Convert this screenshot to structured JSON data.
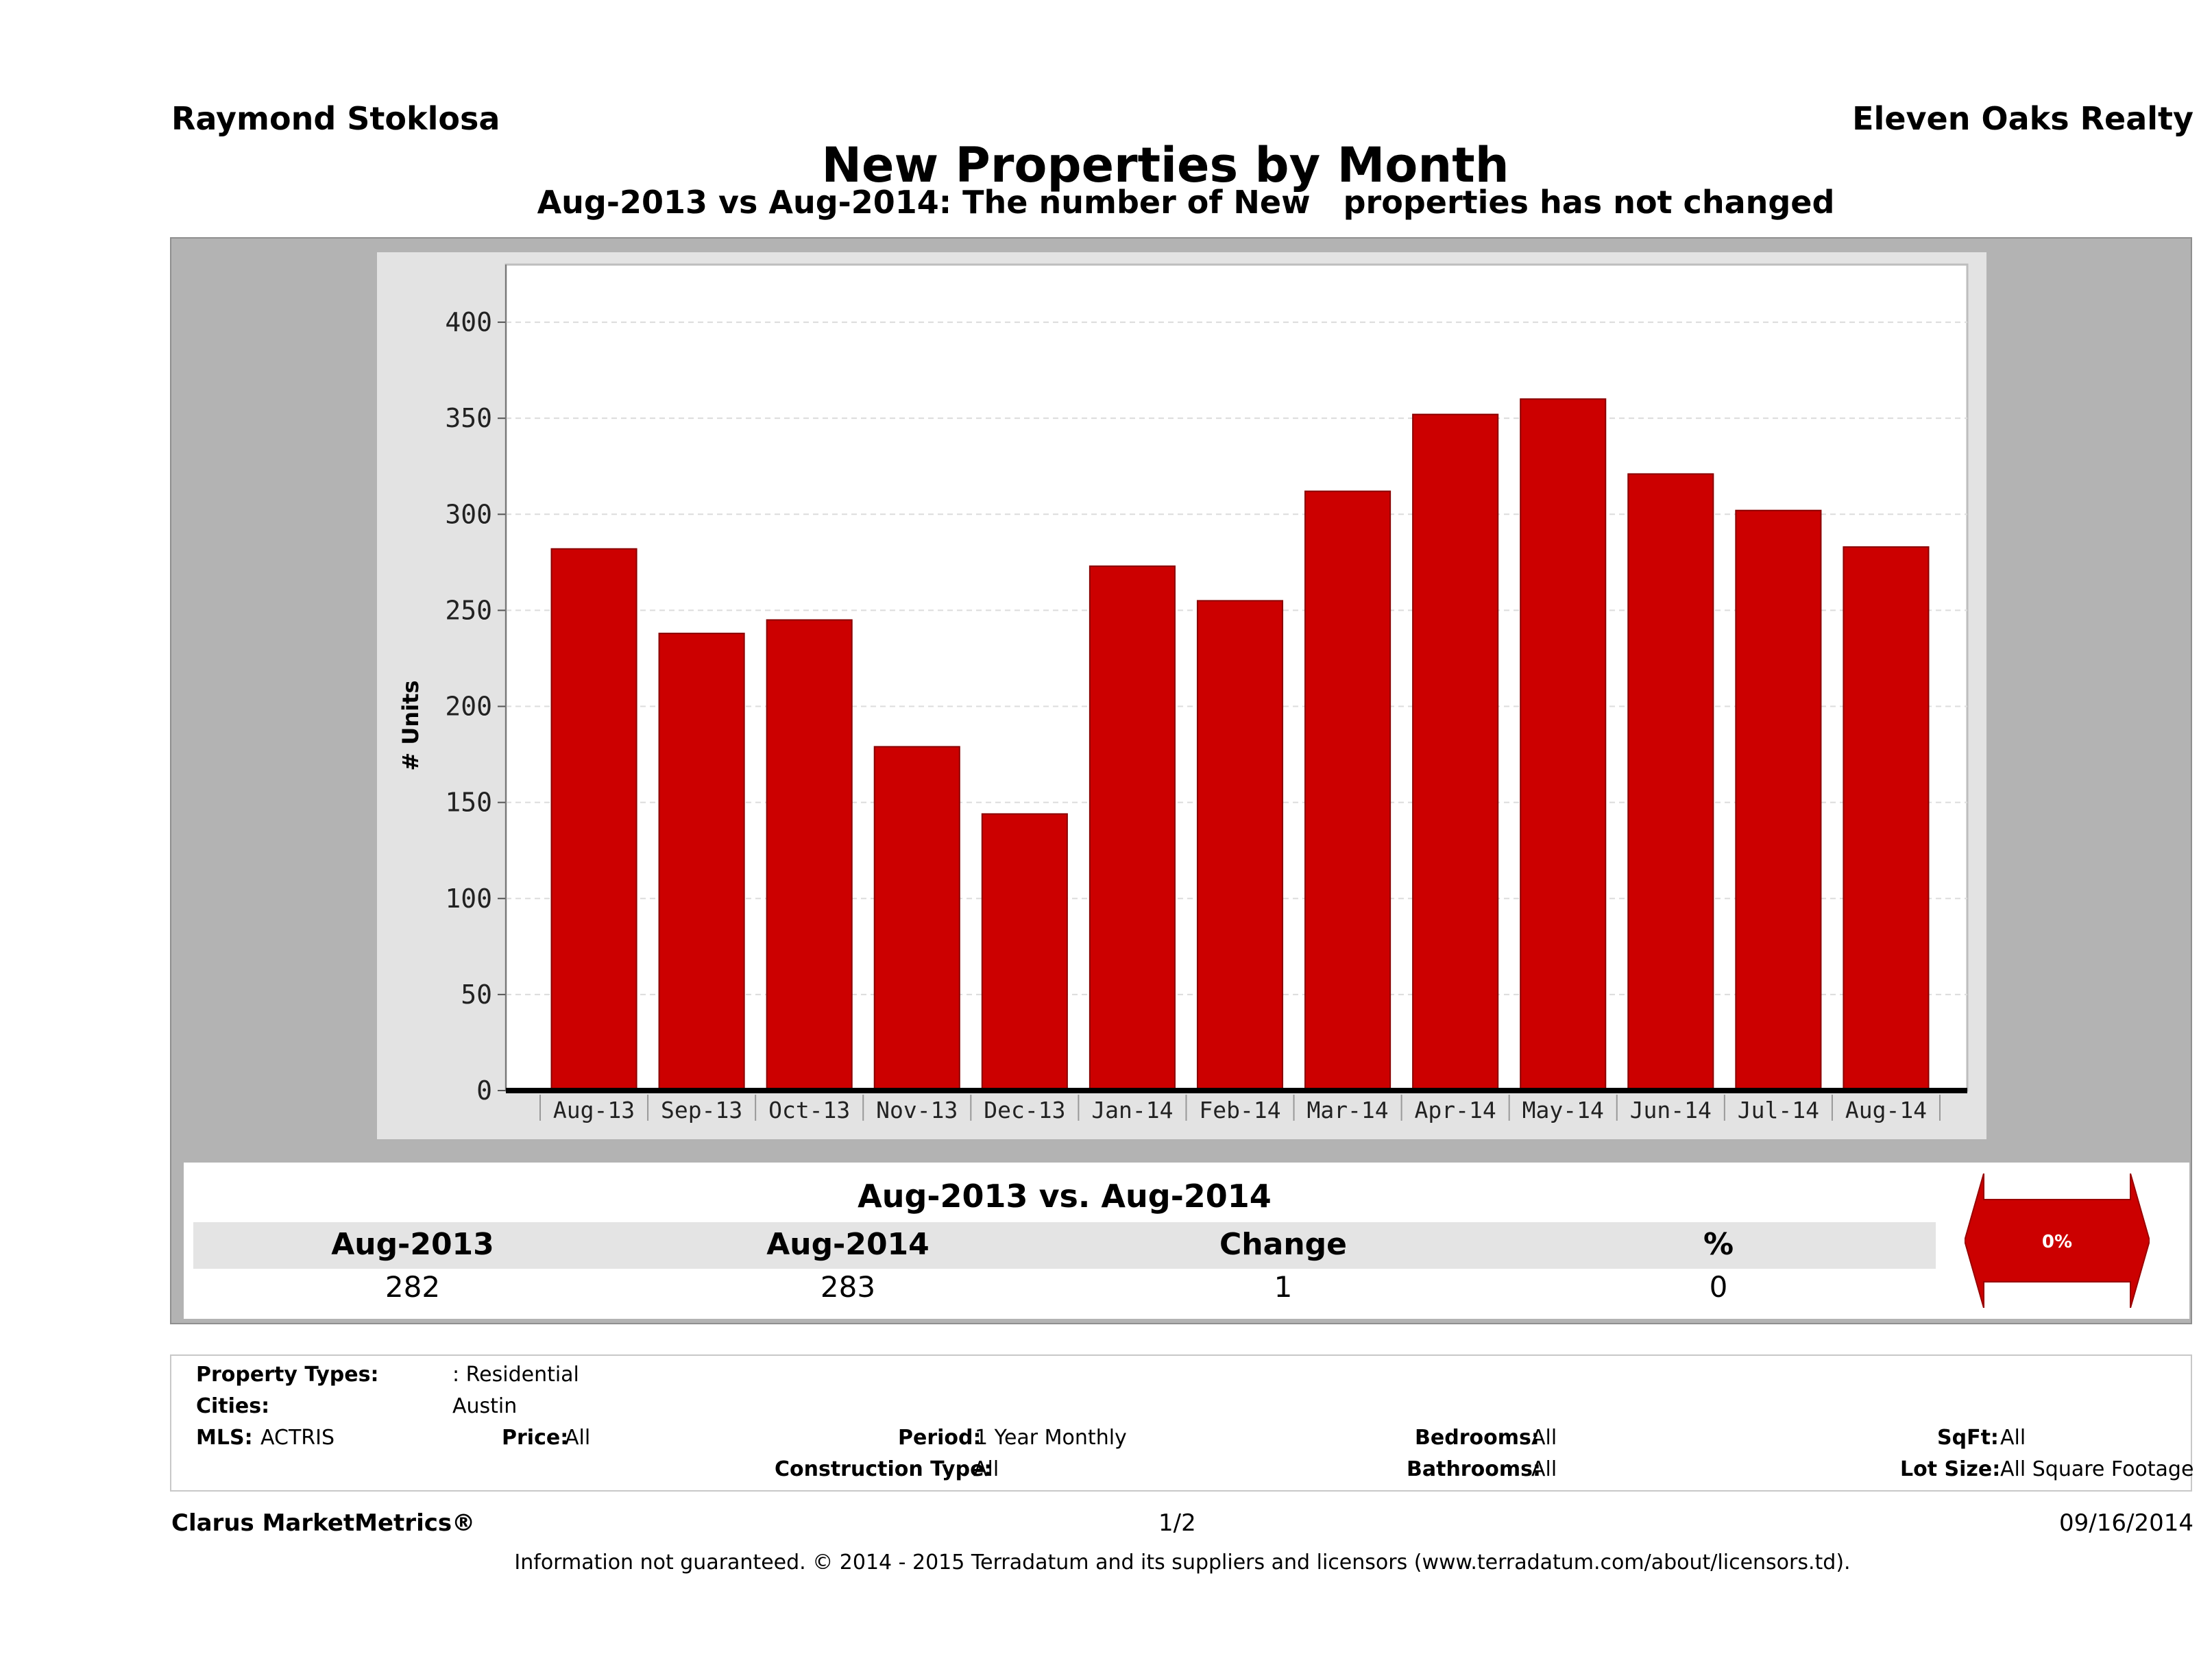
{
  "header": {
    "agent_name": "Raymond Stoklosa",
    "company": "Eleven Oaks Realty",
    "title": "New Properties by Month",
    "subtitle": "Aug-2013 vs Aug-2014: The number of New   properties has not changed"
  },
  "chart_data": {
    "type": "bar",
    "categories": [
      "Aug-13",
      "Sep-13",
      "Oct-13",
      "Nov-13",
      "Dec-13",
      "Jan-14",
      "Feb-14",
      "Mar-14",
      "Apr-14",
      "May-14",
      "Jun-14",
      "Jul-14",
      "Aug-14"
    ],
    "values": [
      282,
      238,
      245,
      179,
      144,
      273,
      255,
      312,
      352,
      360,
      321,
      302,
      283
    ],
    "ylabel": "# Units",
    "ylim": [
      0,
      430
    ],
    "yticks": [
      0,
      50,
      100,
      150,
      200,
      250,
      300,
      350,
      400
    ],
    "grid": true,
    "bar_color": "#cc0000"
  },
  "summary": {
    "title": "Aug-2013 vs. Aug-2014",
    "headers": [
      "Aug-2013",
      "Aug-2014",
      "Change",
      "%"
    ],
    "values": [
      "282",
      "283",
      "1",
      "0"
    ],
    "badge_text": "0%",
    "badge_color": "#cc0000"
  },
  "criteria": {
    "property_types_label": "Property Types:",
    "property_types_value": ": Residential",
    "cities_label": "Cities:",
    "cities_value": "Austin",
    "mls_label": "MLS:",
    "mls_value": "ACTRIS",
    "price_label": "Price:",
    "price_value": "All",
    "period_label": "Period:",
    "period_value": "1 Year Monthly",
    "construction_label": "Construction Type:",
    "construction_value": "All",
    "bedrooms_label": "Bedrooms:",
    "bedrooms_value": "All",
    "bathrooms_label": "Bathrooms:",
    "bathrooms_value": "All",
    "sqft_label": "SqFt:",
    "sqft_value": "All",
    "lotsize_label": "Lot Size:",
    "lotsize_value": "All Square Footage"
  },
  "footer": {
    "brand": "Clarus MarketMetrics®",
    "page": "1/2",
    "date": "09/16/2014",
    "disclaimer": "Information not guaranteed. © 2014 - 2015 Terradatum and its suppliers and licensors (www.terradatum.com/about/licensors.td)."
  }
}
